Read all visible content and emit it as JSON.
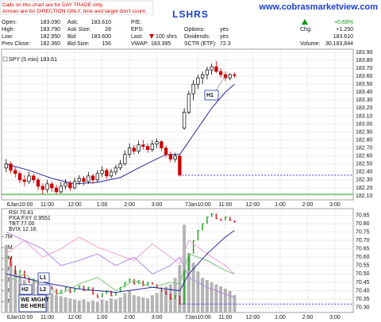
{
  "notice": [
    "Calls on this chart are for DAY TRADE only.",
    "Arrows are for DIRECTION ONLY, time and target don't count."
  ],
  "title": "LSHRS",
  "site": "www.cobrasmarketview.com",
  "quote": {
    "open": [
      "Open:",
      "183.090"
    ],
    "high": [
      "High:",
      "183.790"
    ],
    "low": [
      "Low:",
      "182.950"
    ],
    "prev_close": [
      "Prev Close:",
      "182.360"
    ],
    "ask": [
      "Ask:",
      "183.610"
    ],
    "ask_size": [
      "Ask Size:",
      "28"
    ],
    "bid": [
      "Bid",
      "183.600"
    ],
    "bid_size": [
      "Bid Size:",
      "156"
    ],
    "pe": [
      "P/E:"
    ],
    "eps": [
      "EPS:"
    ],
    "last": [
      "Last:",
      "100 shrs"
    ],
    "vwap": [
      "VWAP:",
      "183.395"
    ],
    "options": [
      "Options:",
      "yes"
    ],
    "dividends": [
      "Dividends:",
      "yes"
    ],
    "sctr": [
      "SCTR (ETF):",
      "72.3"
    ],
    "change_pct": "+0.69%",
    "chg": [
      "Chg:",
      "+1.250"
    ],
    "price": "183.610",
    "volume": [
      "Volume:",
      "30,183,844"
    ]
  },
  "chart_data": [
    {
      "type": "candlestick",
      "title": "SPY (5 min) 183.61",
      "xlim": [
        -1,
        76
      ],
      "ylim": [
        182.05,
        183.94
      ],
      "grid": true,
      "up_color": "#000000",
      "down_color": "#cc0000",
      "xticks": [
        {
          "value": 3,
          "label": "6Jan10:00"
        },
        {
          "value": 9,
          "label": "11:00"
        },
        {
          "value": 15,
          "label": "12:00"
        },
        {
          "value": 21,
          "label": "1:00"
        },
        {
          "value": 27,
          "label": "2:00"
        },
        {
          "value": 33,
          "label": "3:00"
        },
        {
          "value": 42,
          "label": "7Jan10:00"
        },
        {
          "value": 48,
          "label": "11:00"
        },
        {
          "value": 54,
          "label": "12:00"
        },
        {
          "value": 60,
          "label": "1:00"
        },
        {
          "value": 66,
          "label": "2:00"
        },
        {
          "value": 72,
          "label": "3:00"
        }
      ],
      "yticks": [
        {
          "value": 182.1,
          "label": "182.10"
        },
        {
          "value": 182.2,
          "label": "182.20"
        },
        {
          "value": 182.3,
          "label": "182.30"
        },
        {
          "value": 182.4,
          "label": "182.40"
        },
        {
          "value": 182.5,
          "label": "182.50"
        },
        {
          "value": 182.6,
          "label": "182.60"
        },
        {
          "value": 182.7,
          "label": "182.70"
        },
        {
          "value": 182.8,
          "label": "182.80"
        },
        {
          "value": 182.9,
          "label": "182.90"
        },
        {
          "value": 183.0,
          "label": "183.00"
        },
        {
          "value": 183.1,
          "label": "183.10"
        },
        {
          "value": 183.2,
          "label": "183.20"
        },
        {
          "value": 183.3,
          "label": "183.30"
        },
        {
          "value": 183.4,
          "label": "183.40"
        },
        {
          "value": 183.5,
          "label": "183.50"
        },
        {
          "value": 183.6,
          "label": "183.60"
        },
        {
          "value": 183.7,
          "label": "183.70"
        },
        {
          "value": 183.8,
          "label": "183.80"
        },
        {
          "value": 183.9,
          "label": "183.90"
        }
      ],
      "ohlc": [
        [
          182.45,
          182.56,
          182.4,
          182.5
        ],
        [
          182.5,
          182.53,
          182.38,
          182.42
        ],
        [
          182.42,
          182.46,
          182.33,
          182.38
        ],
        [
          182.38,
          182.41,
          182.26,
          182.3
        ],
        [
          182.3,
          182.36,
          182.22,
          182.28
        ],
        [
          182.28,
          182.4,
          182.25,
          182.35
        ],
        [
          182.35,
          182.38,
          182.26,
          182.3
        ],
        [
          182.3,
          182.33,
          182.17,
          182.22
        ],
        [
          182.22,
          182.26,
          182.12,
          182.18
        ],
        [
          182.18,
          182.3,
          182.14,
          182.25
        ],
        [
          182.25,
          182.28,
          182.15,
          182.2
        ],
        [
          182.2,
          182.24,
          182.12,
          182.15
        ],
        [
          182.15,
          182.27,
          182.13,
          182.22
        ],
        [
          182.22,
          182.31,
          182.18,
          182.26
        ],
        [
          182.26,
          182.29,
          182.16,
          182.2
        ],
        [
          182.2,
          182.33,
          182.18,
          182.28
        ],
        [
          182.28,
          182.36,
          182.24,
          182.32
        ],
        [
          182.32,
          182.35,
          182.23,
          182.28
        ],
        [
          182.28,
          182.4,
          182.25,
          182.35
        ],
        [
          182.35,
          182.38,
          182.25,
          182.3
        ],
        [
          182.3,
          182.42,
          182.27,
          182.38
        ],
        [
          182.38,
          182.47,
          182.34,
          182.42
        ],
        [
          182.42,
          182.45,
          182.31,
          182.35
        ],
        [
          182.35,
          182.44,
          182.32,
          182.4
        ],
        [
          182.4,
          182.49,
          182.36,
          182.45
        ],
        [
          182.45,
          182.55,
          182.42,
          182.5
        ],
        [
          182.5,
          182.67,
          182.48,
          182.62
        ],
        [
          182.62,
          182.76,
          182.58,
          182.7
        ],
        [
          182.7,
          182.74,
          182.62,
          182.66
        ],
        [
          182.66,
          182.79,
          182.63,
          182.74
        ],
        [
          182.74,
          182.8,
          182.68,
          182.72
        ],
        [
          182.72,
          182.76,
          182.64,
          182.68
        ],
        [
          182.68,
          182.8,
          182.65,
          182.75
        ],
        [
          182.75,
          182.82,
          182.7,
          182.78
        ],
        [
          182.78,
          182.8,
          182.66,
          182.7
        ],
        [
          182.7,
          182.73,
          182.58,
          182.62
        ],
        [
          182.62,
          182.66,
          182.52,
          182.56
        ],
        [
          182.56,
          182.64,
          182.52,
          182.6
        ],
        [
          182.6,
          182.63,
          182.34,
          182.36
        ],
        [
          182.95,
          183.2,
          182.93,
          183.15
        ],
        [
          183.15,
          183.42,
          183.12,
          183.38
        ],
        [
          183.38,
          183.55,
          183.3,
          183.5
        ],
        [
          183.5,
          183.62,
          183.44,
          183.58
        ],
        [
          183.58,
          183.66,
          183.5,
          183.62
        ],
        [
          183.62,
          183.72,
          183.56,
          183.68
        ],
        [
          183.68,
          183.76,
          183.62,
          183.72
        ],
        [
          183.72,
          183.79,
          183.64,
          183.66
        ],
        [
          183.66,
          183.7,
          183.58,
          183.62
        ],
        [
          183.62,
          183.66,
          183.54,
          183.58
        ],
        [
          183.58,
          183.64,
          183.55,
          183.62
        ],
        [
          183.62,
          183.65,
          183.58,
          183.61
        ]
      ],
      "series": [
        {
          "type": "line",
          "color": "#2b2b9e",
          "x": [
            0,
            5,
            10,
            15,
            20,
            25,
            30,
            35,
            38,
            39,
            42,
            45,
            48,
            50
          ],
          "values": [
            182.5,
            182.42,
            182.32,
            182.25,
            182.27,
            182.33,
            182.48,
            182.62,
            182.62,
            182.7,
            182.95,
            183.2,
            183.4,
            183.5
          ]
        }
      ],
      "reference_line": {
        "value": 182.36,
        "color": "#3a3af0"
      },
      "support_line": {
        "value": 182.12,
        "color": "#1f9e1f"
      },
      "annotations": [
        "H1"
      ]
    },
    {
      "type": "indicator",
      "xlim": [
        -1,
        76
      ],
      "ylim": [
        70.27,
        70.89
      ],
      "y2lim": [
        0,
        9600000
      ],
      "grid": true,
      "xticks": [
        {
          "value": 3,
          "label": "6Jan10:00"
        },
        {
          "value": 9,
          "label": "11:00"
        },
        {
          "value": 15,
          "label": "12:00"
        },
        {
          "value": 21,
          "label": "1:00"
        },
        {
          "value": 27,
          "label": "2:00"
        },
        {
          "value": 33,
          "label": "3:00"
        },
        {
          "value": 42,
          "label": "7Jan10:00"
        },
        {
          "value": 48,
          "label": "11:00"
        },
        {
          "value": 54,
          "label": "12:00"
        },
        {
          "value": 60,
          "label": "1:00"
        },
        {
          "value": 66,
          "label": "2:00"
        },
        {
          "value": 72,
          "label": "3:00"
        }
      ],
      "yticks": [
        {
          "value": 70.3,
          "label": "70.30"
        },
        70.35,
        {
          "value": 70.4,
          "label": "70.40"
        },
        70.45,
        {
          "value": 70.5,
          "label": "70.50"
        },
        70.55,
        {
          "value": 70.6,
          "label": "70.60"
        },
        70.65,
        {
          "value": 70.7,
          "label": "70.70"
        },
        70.75,
        {
          "value": 70.8,
          "label": "70.80"
        },
        70.85
      ],
      "y2ticks": [
        {
          "value": 1000000,
          "label": "1M"
        },
        {
          "value": 2000000,
          "label": "2M"
        },
        {
          "value": 3000000,
          "label": "3M"
        },
        {
          "value": 4000000,
          "label": "4M"
        },
        {
          "value": 5000000,
          "label": "5M"
        },
        {
          "value": 6000000,
          "label": "6M"
        },
        {
          "value": 7000000,
          "label": "7M"
        }
      ],
      "series": [
        {
          "type": "volume",
          "axis": "y2",
          "color": "#b4b4b4",
          "values": [
            6200000,
            4800000,
            3900000,
            3500000,
            3000000,
            2600000,
            2800000,
            2400000,
            2200000,
            2000000,
            1800000,
            1600000,
            1500000,
            1400000,
            1300000,
            1200000,
            1100000,
            1200000,
            1000000,
            1100000,
            1000000,
            1200000,
            1100000,
            1300000,
            1200000,
            1400000,
            1800000,
            2000000,
            1600000,
            1500000,
            1400000,
            1300000,
            1600000,
            1800000,
            2000000,
            2400000,
            2600000,
            3200000,
            4400000,
            8100000,
            5500000,
            4600000,
            3800000,
            3200000,
            3000000,
            2800000,
            2600000,
            2400000,
            2200000,
            2000000,
            1600000
          ]
        },
        {
          "type": "bars",
          "name": "RSI 70.81",
          "color": "#222222",
          "up_color": "#1aa01a",
          "down_color": "#d01010",
          "values": [
            70.6,
            70.55,
            70.5,
            70.52,
            70.48,
            70.45,
            70.47,
            70.42,
            70.4,
            70.43,
            70.41,
            70.38,
            70.4,
            70.42,
            70.39,
            70.41,
            70.43,
            70.4,
            70.42,
            70.38,
            70.36,
            70.38,
            70.4,
            70.37,
            70.39,
            70.42,
            70.45,
            70.47,
            70.44,
            70.46,
            70.43,
            70.45,
            70.44,
            70.42,
            70.4,
            70.38,
            70.35,
            70.37,
            70.32,
            70.52,
            70.62,
            70.7,
            70.76,
            70.8,
            70.84,
            70.86,
            70.83,
            70.82,
            70.84,
            70.82,
            70.81
          ]
        },
        {
          "type": "line",
          "name": "PXA:FXY 0.9551",
          "color": "#7cc47c",
          "x": [
            0,
            4,
            8,
            12,
            16,
            20,
            24,
            28,
            32,
            36,
            38,
            40,
            44,
            48,
            50
          ],
          "values": [
            70.45,
            70.5,
            70.42,
            70.38,
            70.44,
            70.48,
            70.4,
            70.46,
            70.42,
            70.45,
            70.44,
            70.62,
            70.58,
            70.52,
            70.5
          ]
        },
        {
          "type": "line",
          "name": "TBT 77.00",
          "color": "#f0a0d0",
          "x": [
            0,
            4,
            8,
            12,
            16,
            20,
            24,
            28,
            32,
            36,
            38,
            40,
            44,
            48,
            50
          ],
          "values": [
            70.62,
            70.7,
            70.6,
            70.65,
            70.72,
            70.66,
            70.62,
            70.58,
            70.68,
            70.6,
            70.56,
            70.7,
            70.62,
            70.55,
            70.5
          ]
        },
        {
          "type": "line",
          "name": "$VIX 12.16",
          "color": "#b48ae6",
          "x": [
            0,
            4,
            8,
            12,
            16,
            20,
            24,
            28,
            32,
            36,
            38,
            40,
            44,
            48,
            50
          ],
          "values": [
            70.75,
            70.7,
            70.65,
            70.55,
            70.58,
            70.62,
            70.55,
            70.6,
            70.5,
            70.55,
            70.6,
            70.48,
            70.42,
            70.38,
            70.36
          ]
        },
        {
          "type": "line",
          "color": "#2b2b9e",
          "x": [
            0,
            8,
            16,
            24,
            32,
            38,
            40,
            44,
            48,
            50
          ],
          "values": [
            70.5,
            70.45,
            70.41,
            70.39,
            70.42,
            70.4,
            70.5,
            70.62,
            70.72,
            70.76
          ]
        }
      ],
      "reference_line": {
        "value": 70.32,
        "color": "#3a3af0"
      },
      "annotations": [
        "L1",
        "H2",
        "L2",
        [
          "WE MIGHT",
          "BE HERE."
        ]
      ]
    }
  ]
}
